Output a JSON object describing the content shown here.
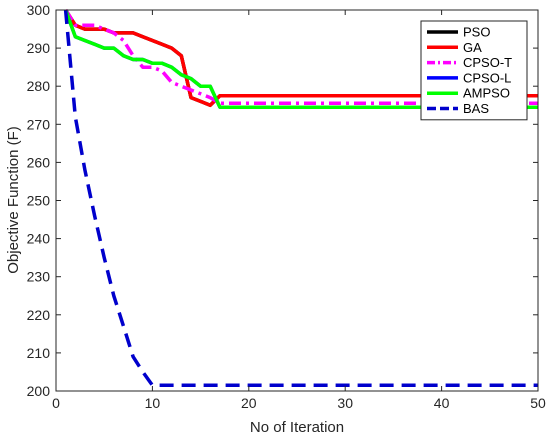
{
  "chart_data": {
    "type": "line",
    "title": "",
    "xlabel": "No of Iteration",
    "ylabel": "Objective Function (F)",
    "xlim": [
      0,
      50
    ],
    "ylim": [
      200,
      300
    ],
    "xticks": [
      0,
      10,
      20,
      30,
      40,
      50
    ],
    "yticks": [
      200,
      210,
      220,
      230,
      240,
      250,
      260,
      270,
      280,
      290,
      300
    ],
    "grid": false,
    "legend_position": "top-right",
    "series": [
      {
        "name": "PSO",
        "color": "#000000",
        "style": "solid",
        "x": [
          1,
          2,
          3,
          4,
          5,
          6,
          7,
          8,
          9,
          10,
          11,
          12,
          13,
          14,
          15,
          16,
          17,
          18,
          50
        ],
        "y": [
          300,
          296,
          295,
          295,
          295,
          294,
          294,
          294,
          293,
          292,
          291,
          290,
          288,
          277,
          276,
          275,
          277.5,
          277.5,
          277.5
        ]
      },
      {
        "name": "GA",
        "color": "#ff0000",
        "style": "solid",
        "x": [
          1,
          2,
          3,
          4,
          5,
          6,
          7,
          8,
          9,
          10,
          11,
          12,
          13,
          14,
          15,
          16,
          17,
          18,
          50
        ],
        "y": [
          300,
          296,
          295,
          295,
          295,
          294,
          294,
          294,
          293,
          292,
          291,
          290,
          288,
          277,
          276,
          275,
          277.5,
          277.5,
          277.5
        ]
      },
      {
        "name": "CPSO-T",
        "color": "#ff00ff",
        "style": "dashdot",
        "x": [
          1,
          2,
          3,
          4,
          5,
          6,
          7,
          8,
          9,
          10,
          11,
          12,
          13,
          14,
          15,
          16,
          17,
          18,
          50
        ],
        "y": [
          300,
          296,
          296,
          296,
          295,
          294,
          292,
          288,
          285,
          285,
          284,
          281,
          280,
          279,
          278,
          277,
          275.5,
          275.5,
          275.5
        ]
      },
      {
        "name": "CPSO-L",
        "color": "#0000ff",
        "style": "solid",
        "x": [
          1,
          2,
          3,
          4,
          5,
          6,
          7,
          8,
          9,
          10,
          11,
          12,
          13,
          14,
          15,
          16,
          17,
          18,
          50
        ],
        "y": [
          300,
          293,
          292,
          291,
          290,
          290,
          288,
          287,
          287,
          286,
          286,
          285,
          283,
          282,
          280,
          280,
          274.5,
          274.5,
          274.5
        ]
      },
      {
        "name": "AMPSO",
        "color": "#00ff00",
        "style": "solid",
        "x": [
          1,
          2,
          3,
          4,
          5,
          6,
          7,
          8,
          9,
          10,
          11,
          12,
          13,
          14,
          15,
          16,
          17,
          18,
          50
        ],
        "y": [
          300,
          293,
          292,
          291,
          290,
          290,
          288,
          287,
          287,
          286,
          286,
          285,
          283,
          282,
          280,
          280,
          274.5,
          274.5,
          274.5
        ]
      },
      {
        "name": "BAS",
        "color": "#0000cc",
        "style": "dashed",
        "x": [
          1,
          2,
          3,
          4,
          5,
          6,
          7,
          8,
          9,
          10,
          50
        ],
        "y": [
          300,
          272,
          258,
          246,
          235,
          225,
          217,
          209,
          205,
          201.5,
          201.5
        ]
      }
    ]
  }
}
